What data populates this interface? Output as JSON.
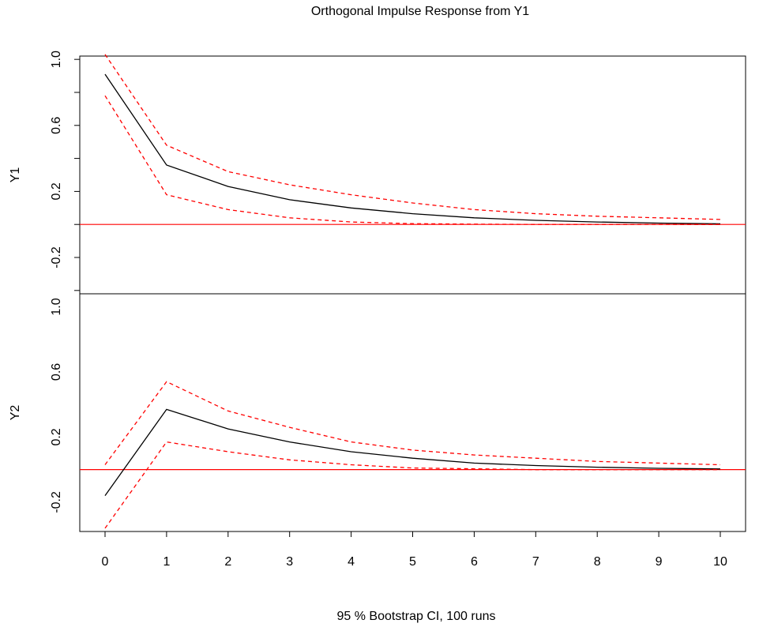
{
  "chart_data": {
    "type": "line",
    "title": "Orthogonal Impulse Response from Y1",
    "xlabel": "95 % Bootstrap CI,  100 runs",
    "x": [
      0,
      1,
      2,
      3,
      4,
      5,
      6,
      7,
      8,
      9,
      10
    ],
    "x_ticks": [
      "0",
      "1",
      "2",
      "3",
      "4",
      "5",
      "6",
      "7",
      "8",
      "9",
      "10"
    ],
    "xlim": [
      0,
      10
    ],
    "grid": false,
    "panels": [
      {
        "ylabel": "Y1",
        "ylim": [
          -0.42,
          1.02
        ],
        "y_ticks": [
          -0.2,
          0.2,
          0.6,
          1.0
        ],
        "y_tick_labels": [
          "-0.2",
          "0.2",
          "0.6",
          "1.0"
        ],
        "reference_line": 0,
        "series": [
          {
            "role": "irf",
            "color": "#000000",
            "style": "solid",
            "values": [
              0.91,
              0.36,
              0.23,
              0.15,
              0.1,
              0.065,
              0.04,
              0.025,
              0.015,
              0.008,
              0.004
            ]
          },
          {
            "role": "upper",
            "color": "#ff0000",
            "style": "dashed",
            "values": [
              1.03,
              0.48,
              0.32,
              0.24,
              0.18,
              0.13,
              0.09,
              0.065,
              0.05,
              0.04,
              0.03
            ]
          },
          {
            "role": "lower",
            "color": "#ff0000",
            "style": "dashed",
            "values": [
              0.78,
              0.18,
              0.09,
              0.04,
              0.015,
              0.005,
              0.002,
              0.0,
              0.0,
              0.0,
              0.0
            ]
          }
        ]
      },
      {
        "ylabel": "Y2",
        "ylim": [
          -0.38,
          1.08
        ],
        "y_ticks": [
          -0.2,
          0.2,
          0.6,
          1.0
        ],
        "y_tick_labels": [
          "-0.2",
          "0.2",
          "0.6",
          "1.0"
        ],
        "reference_line": 0,
        "series": [
          {
            "role": "irf",
            "color": "#000000",
            "style": "solid",
            "values": [
              -0.16,
              0.37,
              0.25,
              0.17,
              0.11,
              0.07,
              0.04,
              0.025,
              0.015,
              0.008,
              0.004
            ]
          },
          {
            "role": "upper",
            "color": "#ff0000",
            "style": "dashed",
            "values": [
              0.03,
              0.54,
              0.36,
              0.26,
              0.17,
              0.12,
              0.09,
              0.07,
              0.05,
              0.04,
              0.03
            ]
          },
          {
            "role": "lower",
            "color": "#ff0000",
            "style": "dashed",
            "values": [
              -0.36,
              0.17,
              0.11,
              0.06,
              0.03,
              0.01,
              0.005,
              0.0,
              0.0,
              0.0,
              0.0
            ]
          }
        ]
      }
    ]
  }
}
